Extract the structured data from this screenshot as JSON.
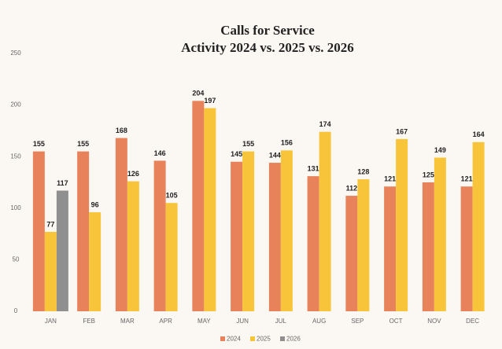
{
  "chart_data": {
    "type": "bar",
    "title": "Calls for Service",
    "subtitle": "Activity 2024 vs. 2025 vs. 2026",
    "categories": [
      "JAN",
      "FEB",
      "MAR",
      "APR",
      "MAY",
      "JUN",
      "JUL",
      "AUG",
      "SEP",
      "OCT",
      "NOV",
      "DEC"
    ],
    "series": [
      {
        "name": "2024",
        "color": "#e8825a",
        "values": [
          155,
          155,
          168,
          146,
          204,
          145,
          144,
          131,
          112,
          121,
          125,
          121
        ]
      },
      {
        "name": "2025",
        "color": "#f8c53a",
        "values": [
          77,
          96,
          126,
          105,
          197,
          155,
          156,
          174,
          128,
          167,
          149,
          164
        ]
      },
      {
        "name": "2026",
        "color": "#8f8f8f",
        "values": [
          117,
          null,
          null,
          null,
          null,
          null,
          null,
          null,
          null,
          null,
          null,
          null
        ]
      }
    ],
    "ylim": [
      0,
      250
    ],
    "yticks": [
      0,
      50,
      100,
      150,
      200,
      250
    ],
    "legend": "bottom",
    "grid": false
  }
}
